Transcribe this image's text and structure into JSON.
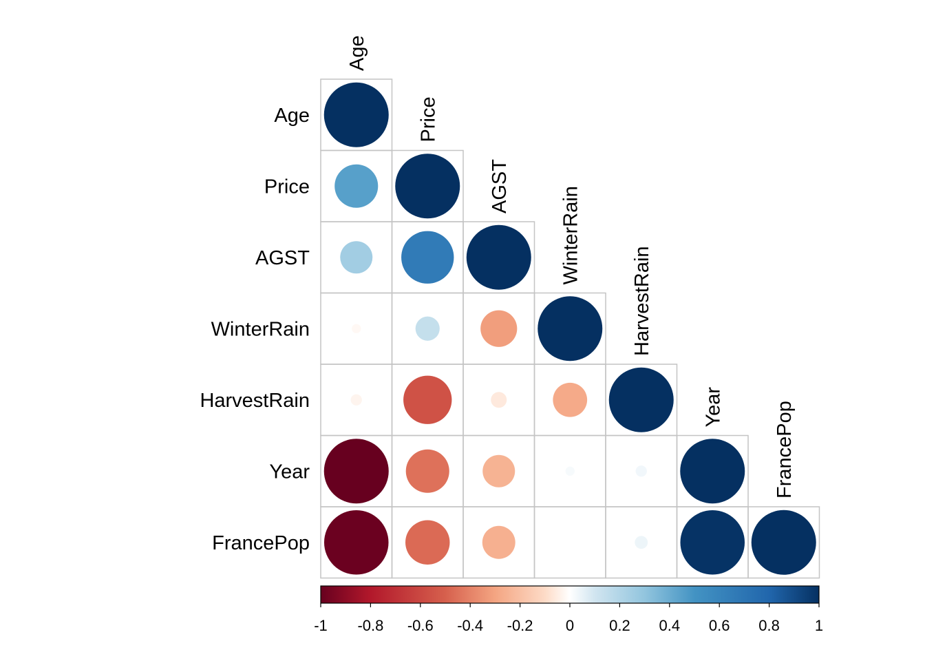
{
  "chart_data": {
    "type": "heatmap",
    "style": "correlation matrix, lower triangle, circle glyphs (area proportional to |r|)",
    "variables": [
      "Age",
      "Price",
      "AGST",
      "WinterRain",
      "HarvestRain",
      "Year",
      "FrancePop"
    ],
    "matrix": [
      [
        1.0,
        0.45,
        0.25,
        -0.02,
        -0.03,
        -1.0,
        -0.99
      ],
      [
        0.45,
        1.0,
        0.66,
        0.14,
        -0.56,
        -0.45,
        -0.47
      ],
      [
        0.25,
        0.66,
        1.0,
        -0.32,
        -0.06,
        -0.25,
        -0.26
      ],
      [
        -0.02,
        0.14,
        -0.32,
        1.0,
        -0.28,
        0.02,
        0.0
      ],
      [
        -0.03,
        -0.56,
        -0.06,
        -0.28,
        1.0,
        0.03,
        0.04
      ],
      [
        -1.0,
        -0.45,
        -0.25,
        0.02,
        0.03,
        1.0,
        0.99
      ],
      [
        -0.99,
        -0.47,
        -0.26,
        0.0,
        0.04,
        0.99,
        1.0
      ]
    ],
    "colorbar": {
      "range": [
        -1,
        1
      ],
      "ticks": [
        "-1",
        "-0.8",
        "-0.6",
        "-0.4",
        "-0.2",
        "0",
        "0.2",
        "0.4",
        "0.6",
        "0.8",
        "1"
      ],
      "colors": {
        "neg1": "#67001F",
        "neg08": "#B2182B",
        "neg05": "#D6604D",
        "neg03": "#F4A582",
        "neg01": "#FDDBC7",
        "zero": "#FFFFFF",
        "pos01": "#D1E5F0",
        "pos03": "#92C5DE",
        "pos05": "#4393C3",
        "pos08": "#2166AC",
        "pos1": "#053061"
      }
    }
  }
}
